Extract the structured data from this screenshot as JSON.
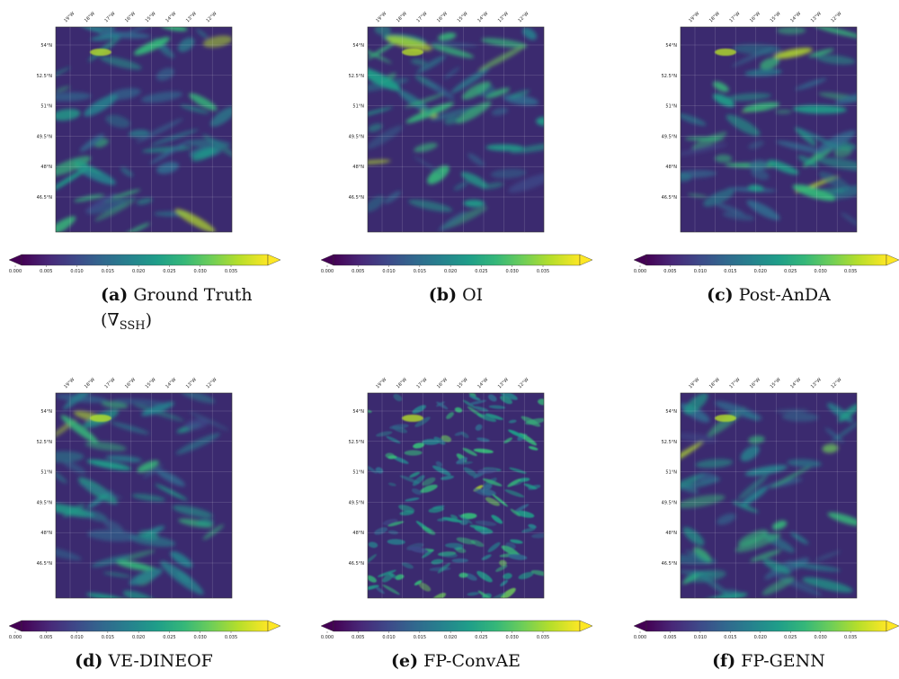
{
  "panels": [
    {
      "label": "(a)",
      "caption": "Ground Truth",
      "caption_prefix": "(∇",
      "caption_sub": "SSH",
      "caption_suffix": ")"
    },
    {
      "label": "(b)",
      "caption": "OI"
    },
    {
      "label": "(c)",
      "caption": "Post-AnDA"
    },
    {
      "label": "(d)",
      "caption": "VE-DINEOF"
    },
    {
      "label": "(e)",
      "caption": "FP-ConvAE"
    },
    {
      "label": "(f)",
      "caption": "FP-GENN"
    }
  ],
  "lon_labels": [
    "19°W",
    "18°W",
    "17°W",
    "16°W",
    "15°W",
    "14°W",
    "13°W",
    "12°W"
  ],
  "lat_labels": [
    "54°N",
    "52.5°N",
    "51°N",
    "49.5°N",
    "48°N",
    "46.5°N"
  ],
  "colorbar_ticks": [
    "0.000",
    "0.005",
    "0.010",
    "0.015",
    "0.020",
    "0.025",
    "0.030",
    "0.035"
  ]
}
